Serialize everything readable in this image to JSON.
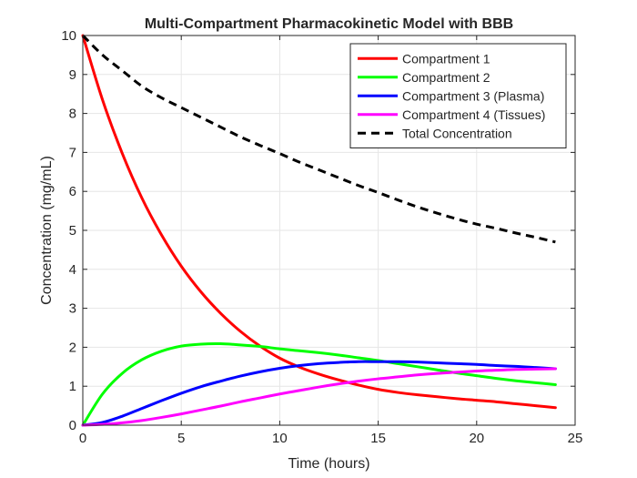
{
  "chart_data": {
    "type": "line",
    "title": "Multi-Compartment Pharmacokinetic Model with BBB",
    "xlabel": "Time (hours)",
    "ylabel": "Concentration (mg/mL)",
    "xlim": [
      0,
      25
    ],
    "ylim": [
      0,
      10
    ],
    "xticks": [
      "0",
      "5",
      "10",
      "15",
      "20",
      "25"
    ],
    "yticks": [
      "0",
      "1",
      "2",
      "3",
      "4",
      "5",
      "6",
      "7",
      "8",
      "9",
      "10"
    ],
    "grid": true,
    "legend_position": "top-right",
    "x": [
      0,
      1,
      2,
      3,
      4,
      5,
      6,
      7,
      8,
      9,
      10,
      11,
      12,
      13,
      14,
      15,
      16,
      17,
      18,
      19,
      20,
      21,
      22,
      23,
      24
    ],
    "series": [
      {
        "name": "Compartment 1",
        "color": "#ff0000",
        "dash": "solid",
        "values": [
          10.0,
          8.35,
          6.98,
          5.83,
          4.88,
          4.08,
          3.42,
          2.87,
          2.41,
          2.03,
          1.72,
          1.49,
          1.31,
          1.16,
          1.03,
          0.92,
          0.84,
          0.78,
          0.73,
          0.68,
          0.64,
          0.6,
          0.55,
          0.5,
          0.45
        ]
      },
      {
        "name": "Compartment 2",
        "color": "#00ff00",
        "dash": "solid",
        "values": [
          0.0,
          0.8,
          1.33,
          1.68,
          1.9,
          2.03,
          2.08,
          2.09,
          2.06,
          2.02,
          1.96,
          1.91,
          1.86,
          1.8,
          1.73,
          1.66,
          1.58,
          1.5,
          1.42,
          1.34,
          1.27,
          1.2,
          1.14,
          1.09,
          1.04
        ]
      },
      {
        "name": "Compartment 3 (Plasma)",
        "color": "#0000ff",
        "dash": "solid",
        "values": [
          0.0,
          0.07,
          0.23,
          0.43,
          0.63,
          0.82,
          0.99,
          1.13,
          1.26,
          1.37,
          1.46,
          1.53,
          1.58,
          1.61,
          1.63,
          1.63,
          1.63,
          1.62,
          1.6,
          1.58,
          1.56,
          1.53,
          1.51,
          1.48,
          1.45
        ]
      },
      {
        "name": "Compartment 4 (Tissues)",
        "color": "#ff00ff",
        "dash": "solid",
        "values": [
          0.0,
          0.02,
          0.06,
          0.12,
          0.2,
          0.29,
          0.39,
          0.49,
          0.6,
          0.7,
          0.8,
          0.89,
          0.98,
          1.06,
          1.13,
          1.19,
          1.24,
          1.29,
          1.33,
          1.36,
          1.39,
          1.41,
          1.43,
          1.44,
          1.45
        ]
      },
      {
        "name": "Total Concentration",
        "color": "#000000",
        "dash": "dashed",
        "values": [
          10.0,
          9.5,
          9.1,
          8.7,
          8.4,
          8.15,
          7.9,
          7.65,
          7.4,
          7.18,
          6.97,
          6.75,
          6.55,
          6.35,
          6.15,
          5.97,
          5.78,
          5.6,
          5.44,
          5.29,
          5.16,
          5.05,
          4.93,
          4.82,
          4.7
        ]
      }
    ]
  }
}
